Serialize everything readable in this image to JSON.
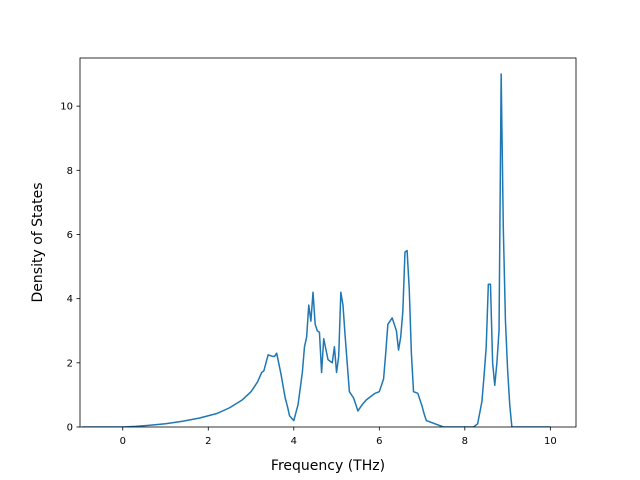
{
  "chart_data": {
    "type": "line",
    "title": "",
    "xlabel": "Frequency (THz)",
    "ylabel": "Density of States",
    "xlim": [
      -1.0,
      10.6
    ],
    "ylim": [
      0,
      11.5
    ],
    "xticks": [
      0,
      2,
      4,
      6,
      8,
      10
    ],
    "xtick_labels": [
      "0",
      "2",
      "4",
      "6",
      "8",
      "10"
    ],
    "yticks": [
      0,
      2,
      4,
      6,
      8,
      10
    ],
    "ytick_labels": [
      "0",
      "2",
      "4",
      "6",
      "8",
      "10"
    ],
    "grid": false,
    "legend": "none",
    "colors": {
      "line": "#1f77b4",
      "axes": "#000000",
      "background": "#ffffff"
    },
    "series": [
      {
        "x": [
          -0.95,
          -0.5,
          -0.2,
          0.0,
          0.3,
          0.6,
          1.0,
          1.4,
          1.8,
          2.2,
          2.5,
          2.8,
          3.0,
          3.15,
          3.25,
          3.3,
          3.4,
          3.5,
          3.55,
          3.6,
          3.7,
          3.8,
          3.85,
          3.9,
          4.0,
          4.1,
          4.2,
          4.25,
          4.3,
          4.35,
          4.4,
          4.45,
          4.5,
          4.55,
          4.6,
          4.65,
          4.7,
          4.8,
          4.85,
          4.9,
          4.95,
          5.0,
          5.05,
          5.1,
          5.15,
          5.2,
          5.3,
          5.4,
          5.5,
          5.6,
          5.7,
          5.8,
          5.9,
          6.0,
          6.1,
          6.15,
          6.2,
          6.3,
          6.35,
          6.4,
          6.45,
          6.5,
          6.55,
          6.6,
          6.65,
          6.7,
          6.75,
          6.8,
          6.9,
          7.0,
          7.05,
          7.1,
          7.5,
          8.0,
          8.2,
          8.3,
          8.4,
          8.45,
          8.5,
          8.55,
          8.6,
          8.65,
          8.7,
          8.75,
          8.8,
          8.85,
          8.9,
          8.95,
          9.0,
          9.05,
          9.1,
          9.15,
          9.2,
          9.5,
          10.0
        ],
        "y": [
          0.0,
          0.0,
          0.0,
          0.0,
          0.02,
          0.05,
          0.1,
          0.18,
          0.28,
          0.42,
          0.6,
          0.85,
          1.1,
          1.4,
          1.7,
          1.75,
          2.25,
          2.2,
          2.2,
          2.3,
          1.65,
          0.9,
          0.65,
          0.35,
          0.2,
          0.7,
          1.7,
          2.5,
          2.8,
          3.8,
          3.3,
          4.2,
          3.2,
          3.0,
          2.95,
          1.7,
          2.75,
          2.1,
          2.05,
          2.0,
          2.5,
          1.7,
          2.2,
          4.2,
          3.8,
          2.85,
          1.1,
          0.9,
          0.5,
          0.7,
          0.85,
          0.95,
          1.05,
          1.1,
          1.5,
          2.3,
          3.2,
          3.4,
          3.2,
          3.0,
          2.4,
          2.8,
          3.6,
          5.45,
          5.5,
          4.3,
          2.3,
          1.1,
          1.05,
          0.65,
          0.4,
          0.2,
          0.0,
          0.0,
          0.0,
          0.1,
          0.8,
          1.6,
          2.5,
          4.45,
          4.45,
          2.0,
          1.3,
          2.0,
          3.0,
          11.0,
          6.2,
          3.3,
          1.8,
          0.7,
          0.0,
          0.0,
          0.0,
          0.0,
          0.0
        ]
      }
    ]
  }
}
